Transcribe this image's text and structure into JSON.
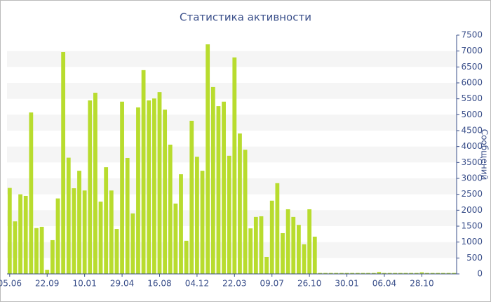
{
  "chart_data": {
    "type": "bar",
    "title": "Статистика активности",
    "y_label": "Сообщений",
    "categories": [
      "05.06",
      null,
      null,
      null,
      null,
      null,
      null,
      "22.09",
      null,
      null,
      null,
      null,
      null,
      null,
      "10.01",
      null,
      null,
      null,
      null,
      null,
      null,
      "29.04",
      null,
      null,
      null,
      null,
      null,
      null,
      "16.08",
      null,
      null,
      null,
      null,
      null,
      null,
      "04.12",
      null,
      null,
      null,
      null,
      null,
      null,
      "22.03",
      null,
      null,
      null,
      null,
      null,
      null,
      "09.07",
      null,
      null,
      null,
      null,
      null,
      null,
      "26.10",
      null,
      null,
      null,
      null,
      null,
      null,
      "30.01",
      null,
      null,
      null,
      null,
      null,
      null,
      "06.04",
      null,
      null,
      null,
      null,
      null,
      null,
      "28.10",
      null,
      null,
      null,
      null,
      null,
      null
    ],
    "values": [
      2700,
      1650,
      2500,
      2450,
      5070,
      1440,
      1480,
      130,
      1060,
      2370,
      6970,
      3650,
      2690,
      3240,
      2620,
      5450,
      5690,
      2270,
      3350,
      2620,
      1410,
      5410,
      3640,
      1900,
      5230,
      6400,
      5450,
      5510,
      5710,
      5160,
      4060,
      2210,
      3130,
      1040,
      4810,
      3680,
      3240,
      7210,
      5870,
      5270,
      5410,
      3710,
      6800,
      4410,
      3900,
      1430,
      1790,
      1810,
      530,
      2300,
      2850,
      1280,
      2030,
      1790,
      1540,
      930,
      2030,
      1170,
      30,
      30,
      30,
      30,
      30,
      30,
      30,
      30,
      30,
      30,
      30,
      60,
      30,
      30,
      30,
      30,
      30,
      30,
      30,
      50,
      30,
      30,
      30,
      30,
      30,
      30
    ],
    "color": "#b8dc2e",
    "ylim": [
      0,
      7500
    ],
    "yticks": [
      0,
      500,
      1000,
      1500,
      2000,
      2500,
      3000,
      3500,
      4000,
      4500,
      5000,
      5500,
      6000,
      6500,
      7000,
      7500
    ],
    "grid": "striped",
    "y_axis_side": "right"
  }
}
